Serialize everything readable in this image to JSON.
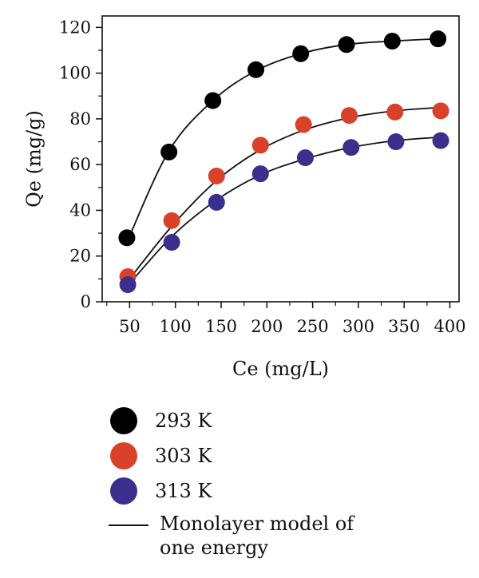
{
  "chart_data": {
    "type": "scatter",
    "xlabel": "Ce (mg/L)",
    "ylabel": "Qe (mg/g)",
    "xlim": [
      20,
      410
    ],
    "ylim": [
      0,
      125
    ],
    "xticks": [
      50,
      100,
      150,
      200,
      250,
      300,
      350,
      400
    ],
    "yticks": [
      0,
      20,
      40,
      60,
      80,
      100,
      120
    ],
    "grid": false,
    "legend_position": "below",
    "series": [
      {
        "name": "293 K",
        "color": "#000000",
        "x": [
          47,
          93,
          141,
          188,
          237,
          287,
          337,
          387
        ],
        "y": [
          28,
          65.5,
          88,
          101.5,
          108.5,
          112.5,
          114,
          115
        ],
        "fit_y": [
          26,
          66,
          88,
          101,
          108.5,
          112.5,
          114,
          115
        ]
      },
      {
        "name": "303 K",
        "color": "#d9412a",
        "x": [
          48,
          96,
          145,
          193,
          240,
          290,
          340,
          390
        ],
        "y": [
          11,
          35.5,
          55,
          68.5,
          77.5,
          81.5,
          83,
          83.5
        ],
        "fit_y": [
          9,
          33,
          53,
          66.5,
          75,
          80.5,
          83.5,
          85
        ]
      },
      {
        "name": "313 K",
        "color": "#3a2f8c",
        "x": [
          48,
          96,
          145,
          193,
          242,
          292,
          341,
          390
        ],
        "y": [
          7.5,
          26,
          43.5,
          56,
          63,
          67.5,
          70,
          70.5
        ],
        "fit_y": [
          7,
          28.5,
          44.5,
          55.5,
          62.5,
          67.5,
          70.5,
          72
        ]
      }
    ],
    "fit_line": {
      "name": "Monolayer model of one energy",
      "color": "#111111"
    }
  },
  "legend": {
    "items": [
      {
        "label": "293 K",
        "color": "#000000"
      },
      {
        "label": "303 K",
        "color": "#d9412a"
      },
      {
        "label": "313 K",
        "color": "#3a2f8c"
      }
    ],
    "model_label": "Monolayer model of one energy"
  }
}
